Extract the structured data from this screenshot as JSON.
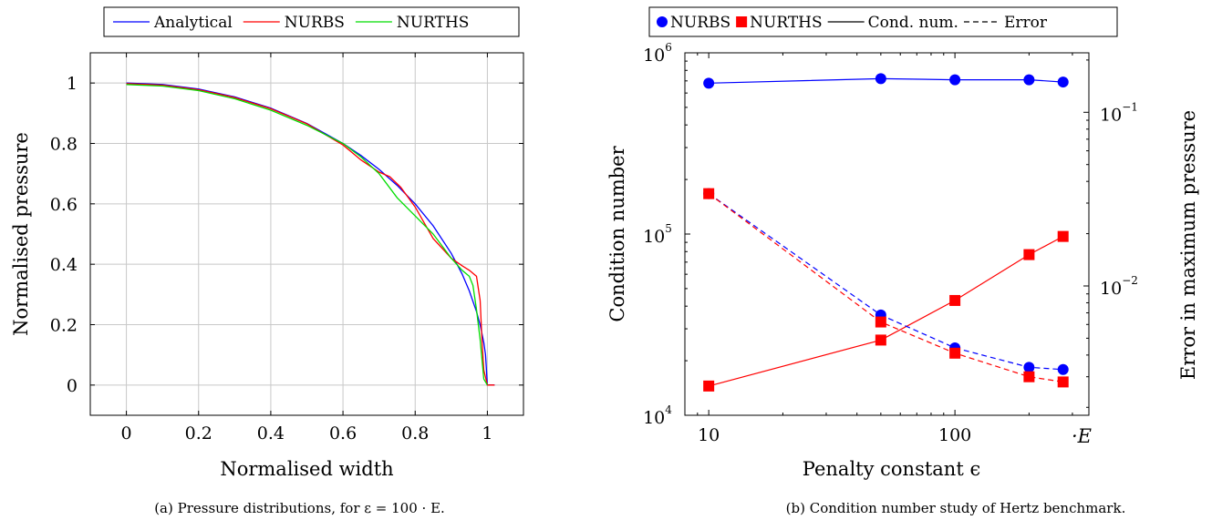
{
  "chart_data": [
    {
      "type": "line",
      "caption": "(a) Pressure distributions, for ε = 100 · E.",
      "xlabel": "Normalised width",
      "ylabel": "Normalised pressure",
      "xlim": [
        -0.1,
        1.1
      ],
      "ylim": [
        -0.1,
        1.1
      ],
      "grid": true,
      "legend_position": "top-center",
      "xticks": [
        0,
        0.2,
        0.4,
        0.6,
        0.8,
        1
      ],
      "xtick_labels": [
        "0",
        "0.2",
        "0.4",
        "0.6",
        "0.8",
        "1"
      ],
      "yticks": [
        0,
        0.2,
        0.4,
        0.6,
        0.8,
        1
      ],
      "ytick_labels": [
        "0",
        "0.2",
        "0.4",
        "0.6",
        "0.8",
        "1"
      ],
      "series": [
        {
          "name": "Analytical",
          "color": "#0000ff",
          "x": [
            0,
            0.1,
            0.2,
            0.3,
            0.4,
            0.5,
            0.6,
            0.65,
            0.7,
            0.75,
            0.8,
            0.85,
            0.9,
            0.93,
            0.95,
            0.97,
            0.98,
            0.99,
            0.995,
            1.0,
            1.02
          ],
          "y": [
            1.0,
            0.995,
            0.98,
            0.954,
            0.917,
            0.866,
            0.8,
            0.76,
            0.714,
            0.661,
            0.6,
            0.527,
            0.436,
            0.368,
            0.312,
            0.243,
            0.199,
            0.141,
            0.1,
            0.0,
            0.0
          ]
        },
        {
          "name": "NURBS",
          "color": "#ff0000",
          "x": [
            0,
            0.1,
            0.2,
            0.3,
            0.4,
            0.5,
            0.6,
            0.65,
            0.7,
            0.73,
            0.76,
            0.8,
            0.85,
            0.9,
            0.93,
            0.95,
            0.97,
            0.98,
            0.985,
            0.99,
            1.0,
            1.02
          ],
          "y": [
            0.998,
            0.993,
            0.978,
            0.952,
            0.915,
            0.865,
            0.795,
            0.745,
            0.705,
            0.69,
            0.655,
            0.59,
            0.485,
            0.42,
            0.395,
            0.38,
            0.36,
            0.28,
            0.15,
            0.05,
            0.0,
            0.0
          ]
        },
        {
          "name": "NURTHS",
          "color": "#00dd00",
          "x": [
            0,
            0.1,
            0.2,
            0.3,
            0.4,
            0.5,
            0.6,
            0.65,
            0.7,
            0.75,
            0.8,
            0.85,
            0.9,
            0.93,
            0.95,
            0.96,
            0.97,
            0.98,
            0.99,
            1.0
          ],
          "y": [
            0.995,
            0.99,
            0.975,
            0.948,
            0.91,
            0.86,
            0.8,
            0.755,
            0.7,
            0.62,
            0.56,
            0.5,
            0.42,
            0.38,
            0.36,
            0.33,
            0.25,
            0.15,
            0.02,
            0.0
          ]
        }
      ]
    },
    {
      "type": "line",
      "caption": "(b) Condition number study of Hertz benchmark.",
      "xlabel": "Penalty constant ϵ",
      "ylabel": "Condition number",
      "ylabel_right": "Error in maximum pressure",
      "x_scale": "log",
      "y_scale": "log",
      "y_right_scale": "log",
      "xlim": [
        8,
        350
      ],
      "ylim": [
        10000,
        1000000
      ],
      "ylim_right": [
        0.0018,
        0.22
      ],
      "xticks": [
        10,
        100
      ],
      "xtick_labels": [
        "10",
        "100"
      ],
      "x_unit_label": "·E",
      "yticks": [
        10000,
        100000,
        1000000
      ],
      "ytick_labels": [
        {
          "base": "10",
          "exp": "4"
        },
        {
          "base": "10",
          "exp": "5"
        },
        {
          "base": "10",
          "exp": "6"
        }
      ],
      "yticks_right": [
        0.01,
        0.1
      ],
      "ytick_labels_right": [
        {
          "base": "10",
          "exp": "−2"
        },
        {
          "base": "10",
          "exp": "−1"
        }
      ],
      "grid": false,
      "legend_position": "top-center",
      "legend": [
        {
          "label": "NURBS",
          "marker": "circle",
          "color": "#0000ff"
        },
        {
          "label": "NURTHS",
          "marker": "square",
          "color": "#ff0000"
        },
        {
          "label": "Cond. num.",
          "line": "solid",
          "color": "#000000"
        },
        {
          "label": "Error",
          "line": "dashed",
          "color": "#000000"
        }
      ],
      "series": [
        {
          "name": "NURBS",
          "metric": "Cond. num.",
          "axis": "left",
          "color": "#0000ff",
          "marker": "circle",
          "dash": false,
          "x": [
            10,
            50,
            100,
            200,
            275
          ],
          "y": [
            680000,
            720000,
            710000,
            710000,
            690000
          ]
        },
        {
          "name": "NURTHS",
          "metric": "Cond. num.",
          "axis": "left",
          "color": "#ff0000",
          "marker": "square",
          "dash": false,
          "x": [
            10,
            50,
            100,
            200,
            275
          ],
          "y": [
            14500,
            26000,
            43000,
            77000,
            97000
          ]
        },
        {
          "name": "NURBS",
          "metric": "Error",
          "axis": "right",
          "color": "#0000ff",
          "marker": "circle",
          "dash": true,
          "x": [
            10,
            50,
            100,
            200,
            275
          ],
          "y": [
            0.034,
            0.0068,
            0.0044,
            0.0034,
            0.0033
          ]
        },
        {
          "name": "NURTHS",
          "metric": "Error",
          "axis": "right",
          "color": "#ff0000",
          "marker": "square",
          "dash": true,
          "x": [
            10,
            50,
            100,
            200,
            275
          ],
          "y": [
            0.034,
            0.0062,
            0.0041,
            0.003,
            0.0028
          ]
        }
      ]
    }
  ]
}
